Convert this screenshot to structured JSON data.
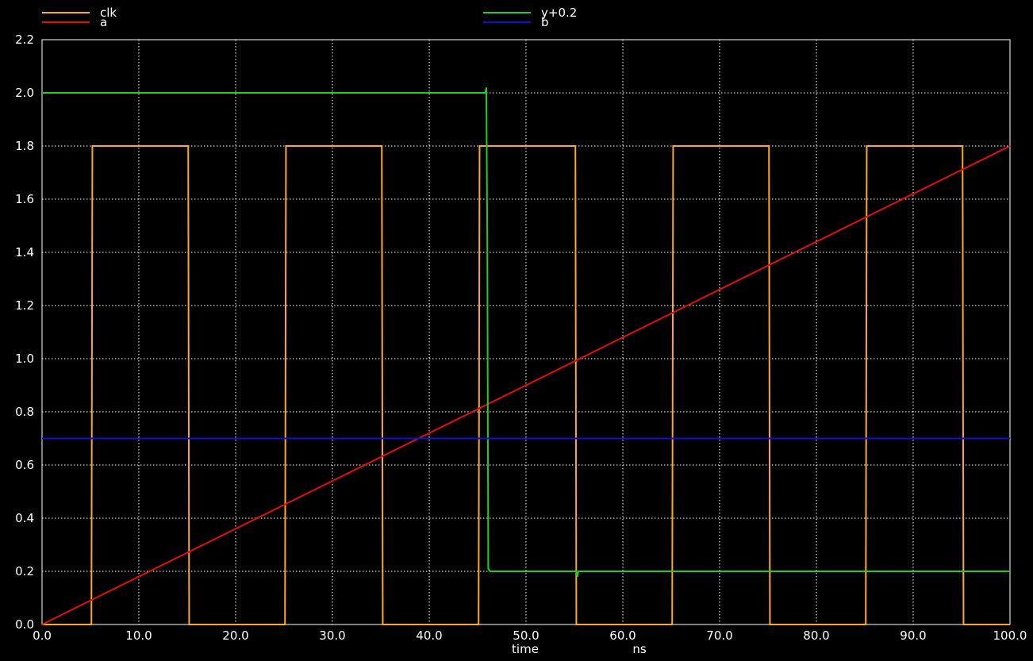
{
  "chart_data": {
    "type": "line",
    "title": "",
    "xlabel": "time",
    "xunit": "ns",
    "ylabel": "",
    "xlim": [
      0,
      100
    ],
    "ylim": [
      0,
      2.2
    ],
    "grid": true,
    "legend_placement": "top",
    "background_color": "#000000",
    "axis_color": "#ffffff",
    "x_ticks": [
      "0.0",
      "10.0",
      "20.0",
      "30.0",
      "40.0",
      "50.0",
      "60.0",
      "70.0",
      "80.0",
      "90.0",
      "100.0"
    ],
    "y_ticks": [
      "0.0",
      "0.2",
      "0.4",
      "0.6",
      "0.8",
      "1.0",
      "1.2",
      "1.4",
      "1.6",
      "1.8",
      "2.0",
      "2.2"
    ],
    "series": [
      {
        "name": "clk",
        "color": "#ffa726",
        "x": [
          0,
          5.1,
          5.2,
          15.1,
          15.2,
          25.1,
          25.2,
          35.1,
          35.2,
          45.1,
          45.2,
          55.1,
          55.2,
          65.1,
          65.2,
          75.1,
          75.2,
          85.1,
          85.2,
          95.1,
          95.2,
          100
        ],
        "y": [
          0,
          0,
          1.8,
          1.8,
          0,
          0,
          1.8,
          1.8,
          0,
          0,
          1.8,
          1.8,
          0,
          0,
          1.8,
          1.8,
          0,
          0,
          1.8,
          1.8,
          0,
          0
        ]
      },
      {
        "name": "a",
        "color": "#e01010",
        "x": [
          0,
          100
        ],
        "y": [
          0,
          1.8
        ]
      },
      {
        "name": "y+0.2",
        "color": "#22cc22",
        "x": [
          0,
          45.8,
          45.9,
          46.0,
          46.1,
          46.3,
          55.2,
          55.3,
          55.4,
          100
        ],
        "y": [
          2.0,
          2.0,
          2.02,
          1.45,
          0.21,
          0.2,
          0.2,
          0.18,
          0.2,
          0.2
        ]
      },
      {
        "name": "b",
        "color": "#1010d0",
        "x": [
          0,
          100
        ],
        "y": [
          0.7,
          0.7
        ]
      }
    ]
  }
}
